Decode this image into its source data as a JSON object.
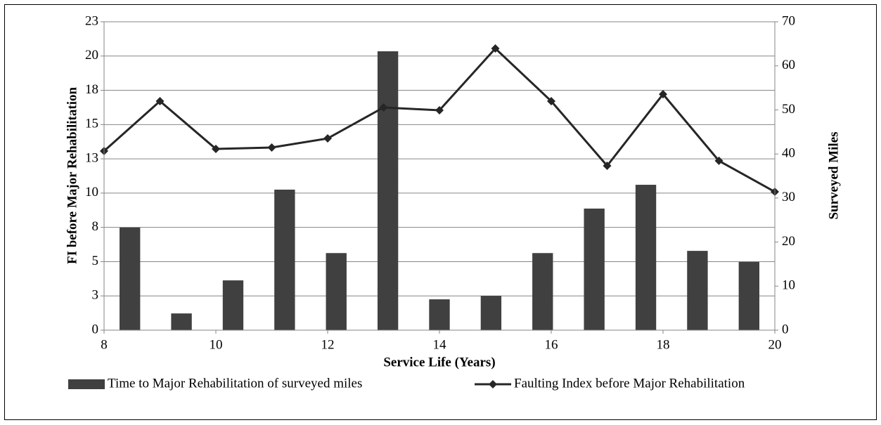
{
  "chart_data": {
    "type": "combo",
    "x": [
      8,
      9,
      10,
      11,
      12,
      13,
      14,
      15,
      16,
      17,
      18,
      19,
      20
    ],
    "xlim": [
      8,
      20
    ],
    "xticks": [
      8,
      10,
      12,
      14,
      16,
      18,
      20
    ],
    "x_label": "Service Life (Years)",
    "y_label": "FI before Major Rehabilitation",
    "y2_label": "Surveyed Miles",
    "ylim": [
      0,
      23
    ],
    "yticks": [
      0,
      {
        "value": 2.5556,
        "label": "3"
      },
      {
        "value": 5.1111,
        "label": "5"
      },
      {
        "value": 7.6667,
        "label": "8"
      },
      {
        "value": 10.2222,
        "label": "10"
      },
      {
        "value": 12.7778,
        "label": "13"
      },
      {
        "value": 15.3333,
        "label": "15"
      },
      {
        "value": 17.8889,
        "label": "18"
      },
      {
        "value": 20.4444,
        "label": "20"
      },
      23
    ],
    "y2lim": [
      0,
      70
    ],
    "y2ticks": [
      0,
      10,
      20,
      30,
      40,
      50,
      60,
      70
    ],
    "grid": true,
    "legend": "bottom",
    "series": [
      {
        "name": "Time to Major Rehabilitation of surveyed miles",
        "type": "bar",
        "axis": "y2",
        "color": "#404040",
        "values": [
          23.3,
          3.8,
          11.3,
          31.9,
          17.5,
          63.3,
          7.0,
          7.8,
          17.5,
          27.6,
          33.0,
          18.0,
          15.5
        ]
      },
      {
        "name": "Faulting Index before Major Rehabilitation",
        "type": "line",
        "color": "#262626",
        "values": [
          13.36,
          17.08,
          13.52,
          13.62,
          14.3,
          16.61,
          16.4,
          21.01,
          17.08,
          12.26,
          17.6,
          12.63,
          10.32
        ]
      }
    ]
  }
}
